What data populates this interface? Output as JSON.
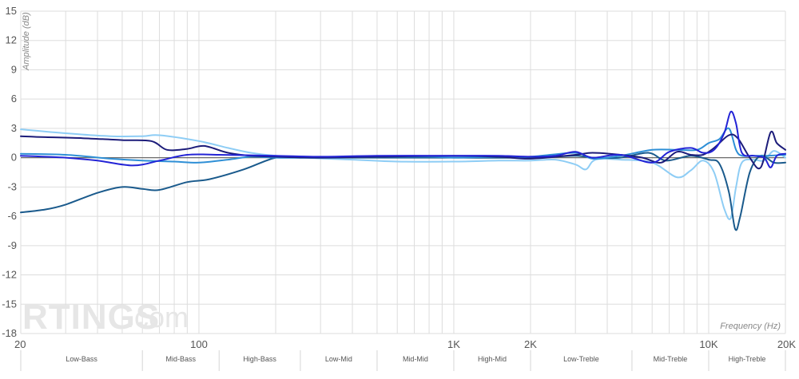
{
  "watermark": {
    "brand": "RTINGS",
    "suffix": ".com"
  },
  "chart_data": {
    "type": "line",
    "xlabel": "Frequency (Hz)",
    "ylabel": "Amplitude (dB)",
    "xscale": "log",
    "xlim": [
      20,
      20000
    ],
    "ylim": [
      -18,
      15
    ],
    "grid": true,
    "y_ticks": [
      {
        "value": 15,
        "label": "15"
      },
      {
        "value": 12,
        "label": "12"
      },
      {
        "value": 9,
        "label": "9"
      },
      {
        "value": 6,
        "label": "6"
      },
      {
        "value": 3,
        "label": "3"
      },
      {
        "value": 0,
        "label": "0"
      },
      {
        "value": -3,
        "label": "-3"
      },
      {
        "value": -6,
        "label": "-6"
      },
      {
        "value": -9,
        "label": "-9"
      },
      {
        "value": -12,
        "label": "-12"
      },
      {
        "value": -15,
        "label": "-15"
      },
      {
        "value": -18,
        "label": "-18"
      }
    ],
    "x_ticks": [
      {
        "value": 20,
        "label": "20"
      },
      {
        "value": 100,
        "label": "100"
      },
      {
        "value": 1000,
        "label": "1K"
      },
      {
        "value": 2000,
        "label": "2K"
      },
      {
        "value": 10000,
        "label": "10K"
      },
      {
        "value": 20000,
        "label": "20K"
      }
    ],
    "bands": [
      {
        "label": "Low-Bass",
        "from": 20,
        "to": 60
      },
      {
        "label": "Mid-Bass",
        "from": 60,
        "to": 120
      },
      {
        "label": "High-Bass",
        "from": 120,
        "to": 250
      },
      {
        "label": "Low-Mid",
        "from": 250,
        "to": 500
      },
      {
        "label": "Mid-Mid",
        "from": 500,
        "to": 1000
      },
      {
        "label": "High-Mid",
        "from": 1000,
        "to": 2000
      },
      {
        "label": "Low-Treble",
        "from": 2000,
        "to": 5000
      },
      {
        "label": "Mid-Treble",
        "from": 5000,
        "to": 10000
      },
      {
        "label": "High-Treble",
        "from": 10000,
        "to": 20000
      }
    ],
    "series": [
      {
        "color": "#8ecdf5",
        "points": [
          [
            20,
            2.9
          ],
          [
            30,
            2.5
          ],
          [
            45,
            2.2
          ],
          [
            60,
            2.2
          ],
          [
            70,
            2.3
          ],
          [
            100,
            1.7
          ],
          [
            130,
            1.0
          ],
          [
            160,
            0.5
          ],
          [
            200,
            0.2
          ],
          [
            260,
            0.0
          ],
          [
            400,
            -0.2
          ],
          [
            600,
            -0.4
          ],
          [
            1000,
            -0.4
          ],
          [
            1500,
            -0.3
          ],
          [
            2000,
            -0.3
          ],
          [
            2500,
            -0.2
          ],
          [
            3000,
            -0.7
          ],
          [
            3300,
            -1.2
          ],
          [
            3600,
            -0.2
          ],
          [
            4500,
            -0.2
          ],
          [
            6000,
            -0.5
          ],
          [
            7500,
            -2.0
          ],
          [
            8500,
            -1.3
          ],
          [
            9500,
            -0.3
          ],
          [
            10500,
            -1.5
          ],
          [
            11500,
            -5.2
          ],
          [
            12200,
            -6.2
          ],
          [
            12800,
            -3.0
          ],
          [
            13500,
            -0.5
          ],
          [
            15000,
            -0.2
          ],
          [
            16500,
            -0.3
          ],
          [
            18000,
            0.7
          ],
          [
            20000,
            0.0
          ]
        ]
      },
      {
        "color": "#1a5a8c",
        "points": [
          [
            20,
            -5.6
          ],
          [
            25,
            -5.3
          ],
          [
            30,
            -4.8
          ],
          [
            40,
            -3.6
          ],
          [
            50,
            -3.0
          ],
          [
            60,
            -3.2
          ],
          [
            70,
            -3.3
          ],
          [
            90,
            -2.5
          ],
          [
            110,
            -2.2
          ],
          [
            150,
            -1.2
          ],
          [
            200,
            0.0
          ],
          [
            250,
            0.0
          ],
          [
            500,
            0.0
          ],
          [
            1000,
            0.0
          ],
          [
            2000,
            0.0
          ],
          [
            3000,
            0.2
          ],
          [
            3500,
            0.0
          ],
          [
            4500,
            0.0
          ],
          [
            5800,
            0.5
          ],
          [
            6800,
            -0.3
          ],
          [
            8500,
            0.2
          ],
          [
            10000,
            -0.2
          ],
          [
            11000,
            -0.6
          ],
          [
            12000,
            -3.5
          ],
          [
            12700,
            -7.3
          ],
          [
            13300,
            -6.0
          ],
          [
            14500,
            -1.5
          ],
          [
            16000,
            0.2
          ],
          [
            18000,
            -0.5
          ],
          [
            20000,
            -0.5
          ]
        ]
      },
      {
        "color": "#2e8fd6",
        "points": [
          [
            20,
            0.4
          ],
          [
            30,
            0.3
          ],
          [
            45,
            -0.1
          ],
          [
            60,
            -0.3
          ],
          [
            80,
            -0.4
          ],
          [
            100,
            -0.5
          ],
          [
            130,
            -0.2
          ],
          [
            160,
            0.1
          ],
          [
            200,
            0.0
          ],
          [
            300,
            0.0
          ],
          [
            500,
            0.1
          ],
          [
            800,
            0.1
          ],
          [
            1000,
            0.0
          ],
          [
            1500,
            0.1
          ],
          [
            2000,
            0.1
          ],
          [
            3000,
            0.5
          ],
          [
            3500,
            -0.1
          ],
          [
            4500,
            0.2
          ],
          [
            6000,
            0.8
          ],
          [
            7500,
            0.8
          ],
          [
            9000,
            0.8
          ],
          [
            10000,
            1.5
          ],
          [
            11000,
            1.9
          ],
          [
            12000,
            3.0
          ],
          [
            12800,
            0.8
          ],
          [
            13500,
            0.2
          ],
          [
            15000,
            0.2
          ],
          [
            17000,
            0.2
          ],
          [
            20000,
            0.3
          ]
        ]
      },
      {
        "color": "#1c1c7a",
        "points": [
          [
            20,
            2.2
          ],
          [
            25,
            2.1
          ],
          [
            35,
            2.0
          ],
          [
            50,
            1.8
          ],
          [
            65,
            1.7
          ],
          [
            75,
            0.8
          ],
          [
            90,
            0.9
          ],
          [
            105,
            1.2
          ],
          [
            130,
            0.5
          ],
          [
            160,
            0.2
          ],
          [
            200,
            0.1
          ],
          [
            300,
            0.0
          ],
          [
            500,
            0.1
          ],
          [
            1000,
            0.2
          ],
          [
            1500,
            0.1
          ],
          [
            2000,
            -0.1
          ],
          [
            3000,
            0.3
          ],
          [
            3500,
            0.5
          ],
          [
            4500,
            0.3
          ],
          [
            5500,
            0.0
          ],
          [
            6500,
            -0.5
          ],
          [
            7500,
            0.6
          ],
          [
            8500,
            0.3
          ],
          [
            9500,
            0.3
          ],
          [
            10500,
            1.0
          ],
          [
            12000,
            2.3
          ],
          [
            13000,
            2.0
          ],
          [
            14500,
            0.0
          ],
          [
            16000,
            -1.0
          ],
          [
            17500,
            2.6
          ],
          [
            18500,
            1.5
          ],
          [
            20000,
            0.8
          ]
        ]
      },
      {
        "color": "#2323d6",
        "points": [
          [
            20,
            0.2
          ],
          [
            30,
            0.0
          ],
          [
            40,
            -0.3
          ],
          [
            55,
            -0.8
          ],
          [
            70,
            -0.3
          ],
          [
            90,
            0.3
          ],
          [
            120,
            0.3
          ],
          [
            200,
            0.2
          ],
          [
            300,
            0.1
          ],
          [
            500,
            0.2
          ],
          [
            1000,
            0.2
          ],
          [
            1500,
            0.2
          ],
          [
            2000,
            0.1
          ],
          [
            2500,
            0.2
          ],
          [
            3000,
            0.6
          ],
          [
            3500,
            0.0
          ],
          [
            4500,
            0.3
          ],
          [
            6000,
            -0.5
          ],
          [
            7000,
            0.6
          ],
          [
            8500,
            1.0
          ],
          [
            9500,
            0.5
          ],
          [
            10500,
            0.8
          ],
          [
            11500,
            2.5
          ],
          [
            12200,
            4.7
          ],
          [
            12800,
            3.5
          ],
          [
            13500,
            0.5
          ],
          [
            15000,
            0.2
          ],
          [
            16500,
            0.0
          ],
          [
            17500,
            -1.0
          ],
          [
            18500,
            0.2
          ],
          [
            20000,
            0.4
          ]
        ]
      }
    ]
  }
}
